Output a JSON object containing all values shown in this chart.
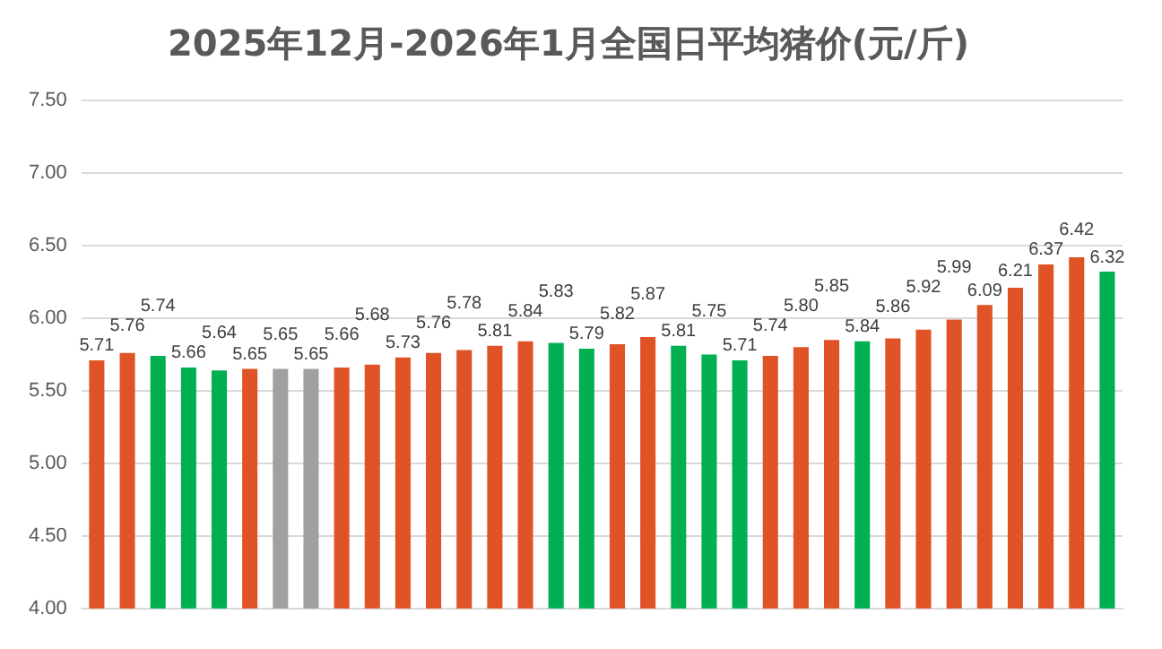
{
  "chart_data": {
    "type": "bar",
    "title": "2025年12月-2026年1月全国日平均猪价(元/斤)",
    "categories": [
      null,
      null,
      null,
      null,
      null,
      null,
      null,
      null,
      null,
      null,
      null,
      null,
      null,
      null,
      null,
      null,
      null,
      null,
      null,
      null,
      null,
      null,
      null,
      null,
      null,
      null,
      null,
      null,
      null,
      null,
      null,
      null,
      null,
      null
    ],
    "values": [
      5.71,
      5.76,
      5.74,
      5.66,
      5.64,
      5.65,
      5.65,
      5.65,
      5.66,
      5.68,
      5.73,
      5.76,
      5.78,
      5.81,
      5.84,
      5.83,
      5.79,
      5.82,
      5.87,
      5.81,
      5.75,
      5.71,
      5.74,
      5.8,
      5.85,
      5.84,
      5.86,
      5.92,
      5.99,
      6.09,
      6.21,
      6.37,
      6.42,
      6.32
    ],
    "value_labels": [
      "5.71",
      "5.76",
      "5.74",
      "5.66",
      "5.64",
      "5.65",
      "5.65",
      "5.65",
      "5.66",
      "5.68",
      "5.73",
      "5.76",
      "5.78",
      "5.81",
      "5.84",
      "5.83",
      "5.79",
      "5.82",
      "5.87",
      "5.81",
      "5.75",
      "5.71",
      "5.74",
      "5.80",
      "5.85",
      "5.84",
      "5.86",
      "5.92",
      "5.99",
      "6.09",
      "6.21",
      "6.37",
      "6.42",
      "6.32"
    ],
    "colors": [
      "#e05326",
      "#e05326",
      "#00b050",
      "#00b050",
      "#00b050",
      "#e05326",
      "#a0a0a0",
      "#a0a0a0",
      "#e05326",
      "#e05326",
      "#e05326",
      "#e05326",
      "#e05326",
      "#e05326",
      "#e05326",
      "#00b050",
      "#00b050",
      "#e05326",
      "#e05326",
      "#00b050",
      "#00b050",
      "#00b050",
      "#e05326",
      "#e05326",
      "#e05326",
      "#00b050",
      "#e05326",
      "#e05326",
      "#e05326",
      "#e05326",
      "#e05326",
      "#e05326",
      "#e05326",
      "#00b050"
    ],
    "ylim": [
      4,
      7.5
    ],
    "yticks": [
      {
        "value": 4,
        "label": "4.00"
      },
      {
        "value": 4.5,
        "label": "4.50"
      },
      {
        "value": 5,
        "label": "5.00"
      },
      {
        "value": 5.5,
        "label": "5.50"
      },
      {
        "value": 6,
        "label": "6.00"
      },
      {
        "value": 6.5,
        "label": "6.50"
      },
      {
        "value": 7,
        "label": "7.00"
      },
      {
        "value": 7.5,
        "label": "7.50"
      }
    ],
    "grid": "y",
    "legend": false
  }
}
